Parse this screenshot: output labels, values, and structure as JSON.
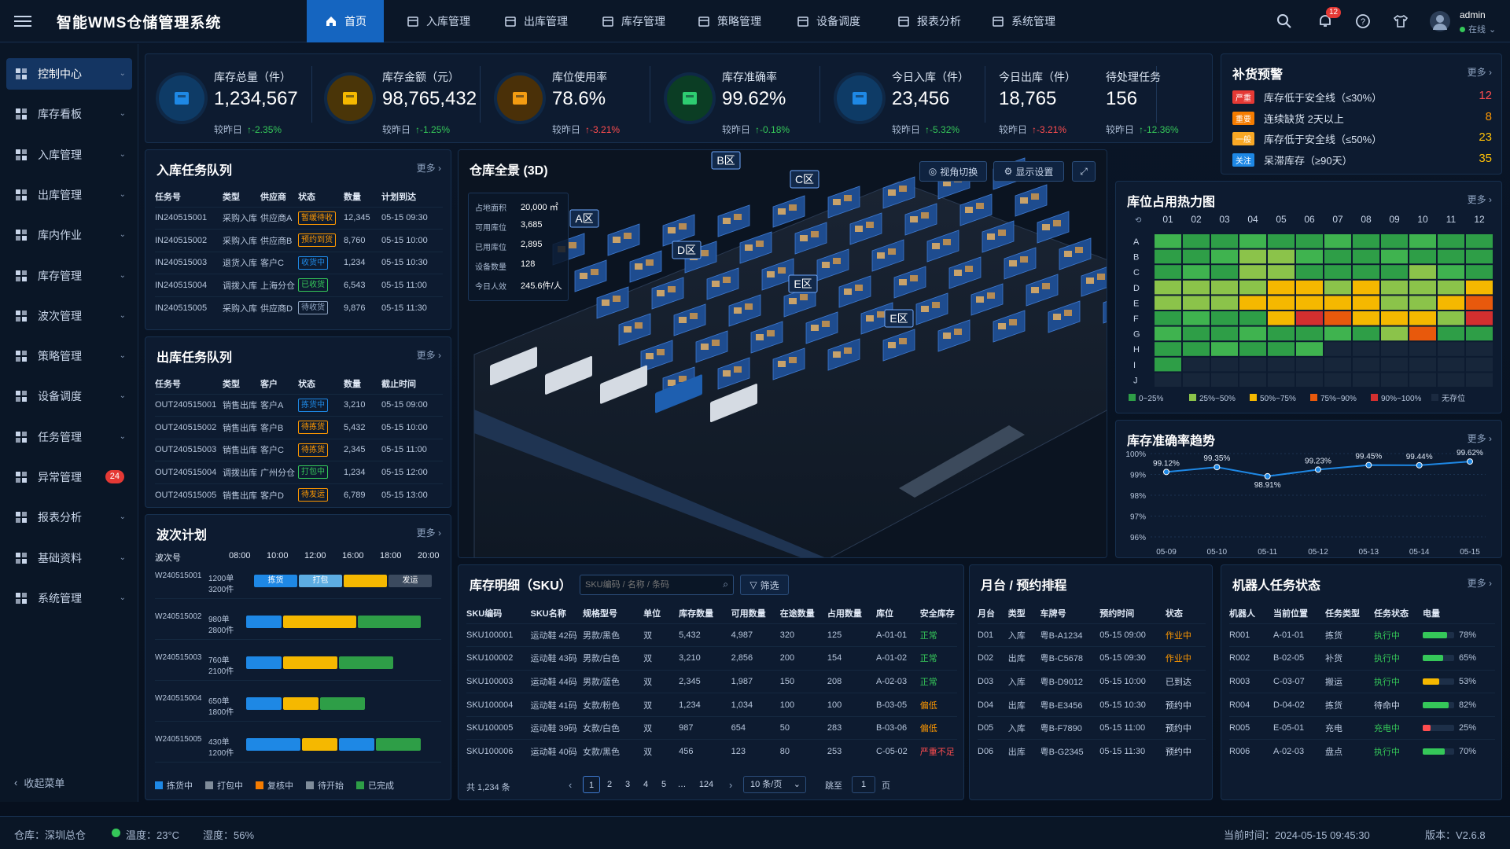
{
  "header": {
    "title": "智能WMS仓储管理系统",
    "nav": [
      {
        "label": "首页",
        "icon": "home-icon"
      },
      {
        "label": "入库管理",
        "icon": "inbound-icon"
      },
      {
        "label": "出库管理",
        "icon": "outbound-icon"
      },
      {
        "label": "库存管理",
        "icon": "inventory-icon"
      },
      {
        "label": "策略管理",
        "icon": "strategy-icon"
      },
      {
        "label": "设备调度",
        "icon": "device-icon"
      },
      {
        "label": "报表分析",
        "icon": "report-icon"
      },
      {
        "label": "系统管理",
        "icon": "gear-icon"
      }
    ],
    "notif_count": "12",
    "user": "admin",
    "user_status": "在线"
  },
  "sidebar": {
    "items": [
      {
        "label": "控制中心"
      },
      {
        "label": "库存看板"
      },
      {
        "label": "入库管理"
      },
      {
        "label": "出库管理"
      },
      {
        "label": "库内作业"
      },
      {
        "label": "库存管理"
      },
      {
        "label": "波次管理"
      },
      {
        "label": "策略管理"
      },
      {
        "label": "设备调度"
      },
      {
        "label": "任务管理"
      },
      {
        "label": "异常管理",
        "count": "24"
      },
      {
        "label": "报表分析"
      },
      {
        "label": "基础资料"
      },
      {
        "label": "系统管理"
      }
    ],
    "collapse": "收起菜单"
  },
  "kpis": [
    {
      "label": "库存总量（件）",
      "value": "1,234,567",
      "cmp": "较昨日",
      "delta": "↑-2.35%",
      "color": "#35c759"
    },
    {
      "label": "库存金额（元）",
      "value": "98,765,432",
      "cmp": "较昨日",
      "delta": "↑-1.25%",
      "color": "#35c759"
    },
    {
      "label": "库位使用率",
      "value": "78.6%",
      "cmp": "较昨日",
      "delta": "↑-3.21%",
      "color": "#ff4d4f"
    },
    {
      "label": "库存准确率",
      "value": "99.62%",
      "cmp": "较昨日",
      "delta": "↑-0.18%",
      "color": "#35c759"
    },
    {
      "label": "今日入库（件）",
      "value": "23,456",
      "cmp": "较昨日",
      "delta": "↑-5.32%",
      "color": "#35c759"
    },
    {
      "label": "今日出库（件）",
      "value": "18,765",
      "cmp": "较昨日",
      "delta": "↑-3.21%",
      "color": "#ff4d4f"
    },
    {
      "label": "待处理任务",
      "value": "156",
      "cmp": "较昨日",
      "delta": "↑-12.36%",
      "color": "#35c759"
    }
  ],
  "replenish": {
    "title": "补货预警",
    "more": "更多 ›",
    "rows": [
      {
        "tag": "严重",
        "tagcolor": "#e53935",
        "text": "库存低于安全线（≤30%）",
        "num": "12",
        "numcolor": "#ff4d4f"
      },
      {
        "tag": "重要",
        "tagcolor": "#f57c00",
        "text": "连续缺货 2天以上",
        "num": "8",
        "numcolor": "#ff9800"
      },
      {
        "tag": "一般",
        "tagcolor": "#f9a825",
        "text": "库存低于安全线（≤50%）",
        "num": "23",
        "numcolor": "#ffc107"
      },
      {
        "tag": "关注",
        "tagcolor": "#1e88e5",
        "text": "呆滞库存（≥90天）",
        "num": "35",
        "numcolor": "#ffc107"
      }
    ]
  },
  "inbound": {
    "title": "入库任务队列",
    "more": "更多 ›",
    "headers": [
      "任务号",
      "类型",
      "供应商",
      "状态",
      "数量",
      "计划到达"
    ],
    "rows": [
      [
        "IN240515001",
        "采购入库",
        "供应商A",
        "暂缓待收",
        "12,345",
        "05-15 09:30"
      ],
      [
        "IN240515002",
        "采购入库",
        "供应商B",
        "预约到货",
        "8,760",
        "05-15 10:00"
      ],
      [
        "IN240515003",
        "退货入库",
        "客户C",
        "收货中",
        "1,234",
        "05-15 10:30"
      ],
      [
        "IN240515004",
        "调拨入库",
        "上海分仓",
        "已收货",
        "6,543",
        "05-15 11:00"
      ],
      [
        "IN240515005",
        "采购入库",
        "供应商D",
        "待收货",
        "9,876",
        "05-15 11:30"
      ]
    ],
    "status_colors": [
      "#ff9800",
      "#ff9800",
      "#1e88e5",
      "#35c759",
      "#8ea3c0"
    ]
  },
  "outbound": {
    "title": "出库任务队列",
    "more": "更多 ›",
    "headers": [
      "任务号",
      "类型",
      "客户",
      "状态",
      "数量",
      "截止时间"
    ],
    "rows": [
      [
        "OUT240515001",
        "销售出库",
        "客户A",
        "拣货中",
        "3,210",
        "05-15 09:00"
      ],
      [
        "OUT240515002",
        "销售出库",
        "客户B",
        "待拣货",
        "5,432",
        "05-15 10:00"
      ],
      [
        "OUT240515003",
        "销售出库",
        "客户C",
        "待拣货",
        "2,345",
        "05-15 11:00"
      ],
      [
        "OUT240515004",
        "调拨出库",
        "广州分仓",
        "打包中",
        "1,234",
        "05-15 12:00"
      ],
      [
        "OUT240515005",
        "销售出库",
        "客户D",
        "待发运",
        "6,789",
        "05-15 13:00"
      ]
    ],
    "status_colors": [
      "#1e88e5",
      "#ff9800",
      "#ff9800",
      "#35c759",
      "#ff9800"
    ]
  },
  "wave": {
    "title": "波次计划",
    "more": "更多 ›",
    "col_header": "波次号",
    "times": [
      "08:00",
      "10:00",
      "12:00",
      "16:00",
      "18:00",
      "20:00"
    ],
    "rows": [
      {
        "id": "W240515001",
        "orders": "1200单",
        "pieces": "3200件",
        "segs": [
          [
            "#1e88e5",
            0.25,
            "拣货"
          ],
          [
            "#5dade2",
            0.25,
            "打包"
          ],
          [
            "#f5b800",
            0.25,
            ""
          ],
          [
            "#3b4a5e",
            0.25,
            "发运"
          ]
        ]
      },
      {
        "id": "W240515002",
        "orders": "980单",
        "pieces": "2800件",
        "segs": [
          [
            "#1e88e5",
            0.2,
            ""
          ],
          [
            "#f5b800",
            0.4,
            ""
          ],
          [
            "#2e9e47",
            0.35,
            ""
          ]
        ]
      },
      {
        "id": "W240515003",
        "orders": "760单",
        "pieces": "2100件",
        "segs": [
          [
            "#1e88e5",
            0.2,
            ""
          ],
          [
            "#f5b800",
            0.3,
            ""
          ],
          [
            "#2e9e47",
            0.3,
            ""
          ]
        ]
      },
      {
        "id": "W240515004",
        "orders": "650单",
        "pieces": "1800件",
        "segs": [
          [
            "#1e88e5",
            0.2,
            ""
          ],
          [
            "#f5b800",
            0.2,
            ""
          ],
          [
            "#2e9e47",
            0.25,
            ""
          ]
        ]
      },
      {
        "id": "W240515005",
        "orders": "430单",
        "pieces": "1200件",
        "segs": [
          [
            "#1e88e5",
            0.3,
            ""
          ],
          [
            "#f5b800",
            0.2,
            ""
          ],
          [
            "#1e88e5",
            0.2,
            ""
          ],
          [
            "#2e9e47",
            0.25,
            ""
          ]
        ]
      }
    ],
    "legend": [
      {
        "label": "拣货中",
        "color": "#1e88e5"
      },
      {
        "label": "打包中",
        "color": "#7f8c9a"
      },
      {
        "label": "复核中",
        "color": "#f57c00"
      },
      {
        "label": "待开始",
        "color": "#7f8c9a"
      },
      {
        "label": "已完成",
        "color": "#2e9e47"
      }
    ]
  },
  "warehouse": {
    "title": "仓库全景 (3D)",
    "btn_view": "视角切换",
    "btn_display": "显示设置",
    "stats": [
      [
        "占地面积",
        "20,000 ㎡"
      ],
      [
        "可用库位",
        "3,685"
      ],
      [
        "已用库位",
        "2,895"
      ],
      [
        "设备数量",
        "128"
      ],
      [
        "今日人效",
        "245.6件/人"
      ]
    ],
    "zones": [
      "A区",
      "B区",
      "C区",
      "D区",
      "E区",
      "E区"
    ]
  },
  "heatmap": {
    "title": "库位占用热力图",
    "more": "更多 ›",
    "cols": [
      "01",
      "02",
      "03",
      "04",
      "05",
      "06",
      "07",
      "08",
      "09",
      "10",
      "11",
      "12"
    ],
    "rows": [
      "A",
      "B",
      "C",
      "D",
      "E",
      "F",
      "G",
      "H",
      "I",
      "J"
    ],
    "grid": [
      [
        1,
        1,
        1,
        1,
        1,
        1,
        1,
        1,
        1,
        1,
        1,
        1
      ],
      [
        1,
        1,
        1,
        2,
        2,
        1,
        1,
        1,
        1,
        1,
        1,
        0
      ],
      [
        1,
        1,
        1,
        2,
        2,
        1,
        1,
        0,
        1,
        2,
        1,
        1
      ],
      [
        2,
        2,
        2,
        2,
        3,
        3,
        2,
        3,
        2,
        2,
        2,
        3
      ],
      [
        2,
        2,
        2,
        3,
        3,
        3,
        3,
        3,
        2,
        2,
        3,
        4
      ],
      [
        1,
        1,
        1,
        1,
        3,
        4,
        4,
        3,
        3,
        3,
        2,
        4
      ],
      [
        1,
        1,
        1,
        1,
        1,
        1,
        1,
        1,
        2,
        4,
        1,
        1
      ],
      [
        1,
        1,
        1,
        1,
        1,
        1,
        5,
        5,
        5,
        5,
        5,
        5
      ],
      [
        1,
        5,
        5,
        5,
        5,
        5,
        5,
        5,
        5,
        5,
        5,
        5
      ],
      [
        5,
        5,
        5,
        5,
        5,
        5,
        5,
        5,
        5,
        5,
        5,
        5
      ]
    ],
    "legend": [
      {
        "label": "0~25%",
        "color": "#2e9e47"
      },
      {
        "label": "25%~50%",
        "color": "#8bc34a"
      },
      {
        "label": "50%~75%",
        "color": "#f5b800"
      },
      {
        "label": "75%~90%",
        "color": "#e8590c"
      },
      {
        "label": "90%~100%",
        "color": "#d32f2f"
      },
      {
        "label": "无存位",
        "color": "#1b2a40"
      }
    ],
    "colors": [
      "#4caf50",
      "#2e9e47",
      "#8bc34a",
      "#f5b800",
      "#e8590c",
      "#17263a"
    ]
  },
  "accuracy": {
    "title": "库存准确率趋势",
    "more": "更多 ›",
    "chart_data": {
      "type": "line",
      "x": [
        "05-09",
        "05-10",
        "05-11",
        "05-12",
        "05-13",
        "05-14",
        "05-15"
      ],
      "values": [
        99.12,
        99.35,
        98.91,
        99.23,
        99.45,
        99.44,
        99.62
      ],
      "labels": [
        "99.12%",
        "99.35%",
        "98.91%",
        "99.23%",
        "99.45%",
        "99.44%",
        "99.62%"
      ],
      "yticks": [
        "100%",
        "99%",
        "98%",
        "97%",
        "96%"
      ],
      "ylim": [
        96,
        100
      ]
    }
  },
  "sku": {
    "title": "库存明细（SKU）",
    "search_placeholder": "SKU编码 / 名称 / 条码",
    "filter": "筛选",
    "headers": [
      "SKU编码",
      "SKU名称",
      "规格型号",
      "单位",
      "库存数量",
      "可用数量",
      "在途数量",
      "占用数量",
      "库位",
      "安全库存"
    ],
    "rows": [
      [
        "SKU100001",
        "运动鞋 42码",
        "男款/黑色",
        "双",
        "5,432",
        "4,987",
        "320",
        "125",
        "A-01-01",
        "正常"
      ],
      [
        "SKU100002",
        "运动鞋 43码",
        "男款/白色",
        "双",
        "3,210",
        "2,856",
        "200",
        "154",
        "A-01-02",
        "正常"
      ],
      [
        "SKU100003",
        "运动鞋 44码",
        "男款/蓝色",
        "双",
        "2,345",
        "1,987",
        "150",
        "208",
        "A-02-03",
        "正常"
      ],
      [
        "SKU100004",
        "运动鞋 41码",
        "女款/粉色",
        "双",
        "1,234",
        "1,034",
        "100",
        "100",
        "B-03-05",
        "偏低"
      ],
      [
        "SKU100005",
        "运动鞋 39码",
        "女款/白色",
        "双",
        "987",
        "654",
        "50",
        "283",
        "B-03-06",
        "偏低"
      ],
      [
        "SKU100006",
        "运动鞋 40码",
        "女款/黑色",
        "双",
        "456",
        "123",
        "80",
        "253",
        "C-05-02",
        "严重不足"
      ]
    ],
    "status_colors": [
      "#35c759",
      "#35c759",
      "#35c759",
      "#ff9800",
      "#ff9800",
      "#ff4d4f"
    ],
    "total": "共 1,234 条",
    "pages": [
      "1",
      "2",
      "3",
      "4",
      "5",
      "…",
      "124"
    ],
    "page_size": "10 条/页",
    "jump": "跳至",
    "jump_value": "1",
    "page_unit": "页"
  },
  "dock": {
    "title": "月台 / 预约排程",
    "headers": [
      "月台",
      "类型",
      "车牌号",
      "预约时间",
      "状态"
    ],
    "rows": [
      [
        "D01",
        "入库",
        "粤B-A1234",
        "05-15 09:00",
        "作业中"
      ],
      [
        "D02",
        "出库",
        "粤B-C5678",
        "05-15 09:30",
        "作业中"
      ],
      [
        "D03",
        "入库",
        "粤B-D9012",
        "05-15 10:00",
        "已到达"
      ],
      [
        "D04",
        "出库",
        "粤B-E3456",
        "05-15 10:30",
        "预约中"
      ],
      [
        "D05",
        "入库",
        "粤B-F7890",
        "05-15 11:00",
        "预约中"
      ],
      [
        "D06",
        "出库",
        "粤B-G2345",
        "05-15 11:30",
        "预约中"
      ]
    ],
    "status_colors": [
      "#ff9800",
      "#ff9800",
      "#c9d6ea",
      "#c9d6ea",
      "#c9d6ea",
      "#c9d6ea"
    ]
  },
  "robots": {
    "title": "机器人任务状态",
    "more": "更多 ›",
    "headers": [
      "机器人",
      "当前位置",
      "任务类型",
      "任务状态",
      "电量"
    ],
    "rows": [
      {
        "id": "R001",
        "pos": "A-01-01",
        "type": "拣货",
        "status": "执行中",
        "battery": 78,
        "battery_label": "78%",
        "scolor": "#35c759",
        "bcolor": "#35c759"
      },
      {
        "id": "R002",
        "pos": "B-02-05",
        "type": "补货",
        "status": "执行中",
        "battery": 65,
        "battery_label": "65%",
        "scolor": "#35c759",
        "bcolor": "#35c759"
      },
      {
        "id": "R003",
        "pos": "C-03-07",
        "type": "搬运",
        "status": "执行中",
        "battery": 53,
        "battery_label": "53%",
        "scolor": "#35c759",
        "bcolor": "#f5b800"
      },
      {
        "id": "R004",
        "pos": "D-04-02",
        "type": "拣货",
        "status": "待命中",
        "battery": 82,
        "battery_label": "82%",
        "scolor": "#c9d6ea",
        "bcolor": "#35c759"
      },
      {
        "id": "R005",
        "pos": "E-05-01",
        "type": "充电",
        "status": "充电中",
        "battery": 25,
        "battery_label": "25%",
        "scolor": "#35c759",
        "bcolor": "#ff4d4f"
      },
      {
        "id": "R006",
        "pos": "A-02-03",
        "type": "盘点",
        "status": "执行中",
        "battery": 70,
        "battery_label": "70%",
        "scolor": "#35c759",
        "bcolor": "#35c759"
      }
    ]
  },
  "footer": {
    "warehouse": "仓库：深圳总仓",
    "temp": "温度：23°C",
    "humidity": "湿度：56%",
    "time": "当前时间：2024-05-15 09:45:30",
    "version": "版本：V2.6.8"
  }
}
